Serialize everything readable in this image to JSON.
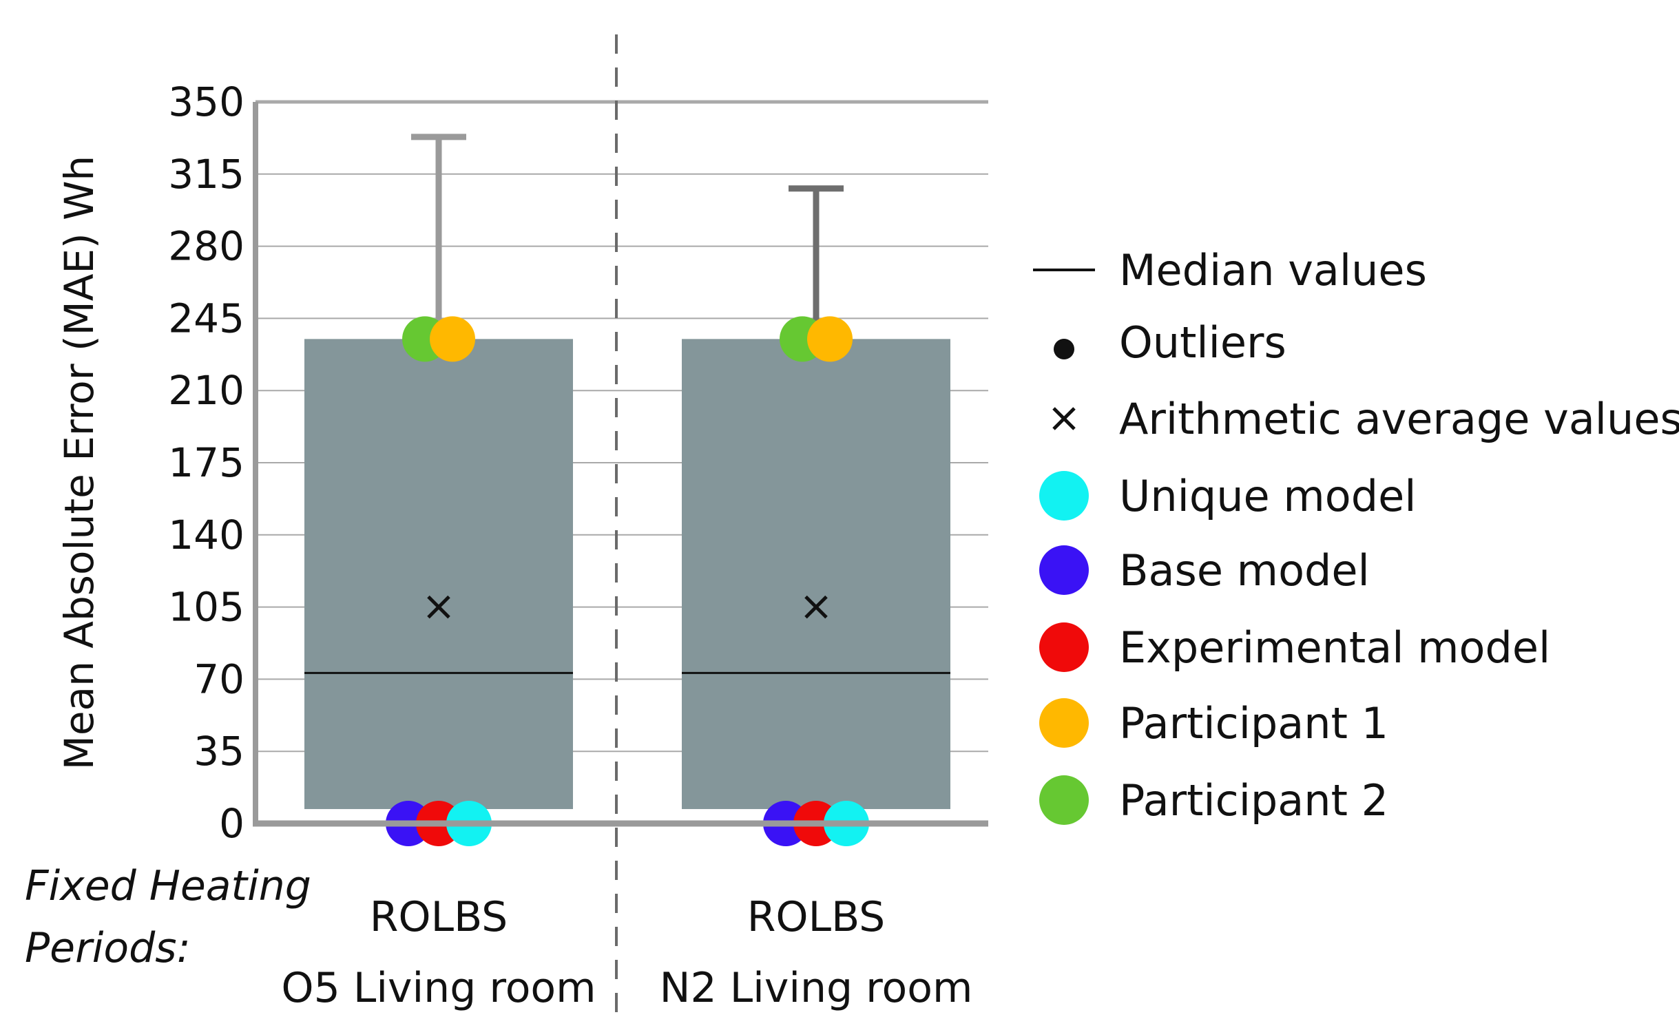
{
  "chart_data": {
    "type": "box",
    "ylabel": "Mean Absolute Error (MAE) Wh",
    "ylim": [
      0,
      350
    ],
    "yticks": [
      0,
      35,
      70,
      105,
      140,
      175,
      210,
      245,
      280,
      315,
      350
    ],
    "grid": true,
    "legend_position": "right",
    "group_label": "Fixed Heating Periods:",
    "categories": [
      {
        "line1": "ROLBS",
        "line2": "O5 Living room",
        "box_low": 7,
        "box_high": 235,
        "median": 73,
        "mean": 105,
        "whisker_high": 333,
        "whisker_color": "#9a9a9a",
        "points": [
          {
            "series": "Base model",
            "value": 0
          },
          {
            "series": "Experimental model",
            "value": 0
          },
          {
            "series": "Unique model",
            "value": 0
          },
          {
            "series": "Participant 2",
            "value": 235
          },
          {
            "series": "Participant 1",
            "value": 235
          }
        ]
      },
      {
        "line1": "ROLBS",
        "line2": "N2 Living room",
        "box_low": 7,
        "box_high": 235,
        "median": 73,
        "mean": 105,
        "whisker_high": 308,
        "whisker_color": "#6e6e6e",
        "points": [
          {
            "series": "Base model",
            "value": 0
          },
          {
            "series": "Experimental model",
            "value": 0
          },
          {
            "series": "Unique model",
            "value": 0
          },
          {
            "series": "Participant 2",
            "value": 235
          },
          {
            "series": "Participant 1",
            "value": 235
          }
        ]
      }
    ],
    "legend": [
      {
        "label": "Median values",
        "marker": "line",
        "color": "#111111"
      },
      {
        "label": "Outliers",
        "marker": "dot",
        "color": "#111111"
      },
      {
        "label": "Arithmetic average values",
        "marker": "cross",
        "color": "#111111"
      },
      {
        "label": "Unique model",
        "marker": "circle",
        "color": "#12f2f2"
      },
      {
        "label": "Base model",
        "marker": "circle",
        "color": "#3a12f5"
      },
      {
        "label": "Experimental model",
        "marker": "circle",
        "color": "#f00a0a"
      },
      {
        "label": "Participant 1",
        "marker": "circle",
        "color": "#ffb800"
      },
      {
        "label": "Participant 2",
        "marker": "circle",
        "color": "#66c832"
      }
    ],
    "box_color": "#84969a"
  }
}
